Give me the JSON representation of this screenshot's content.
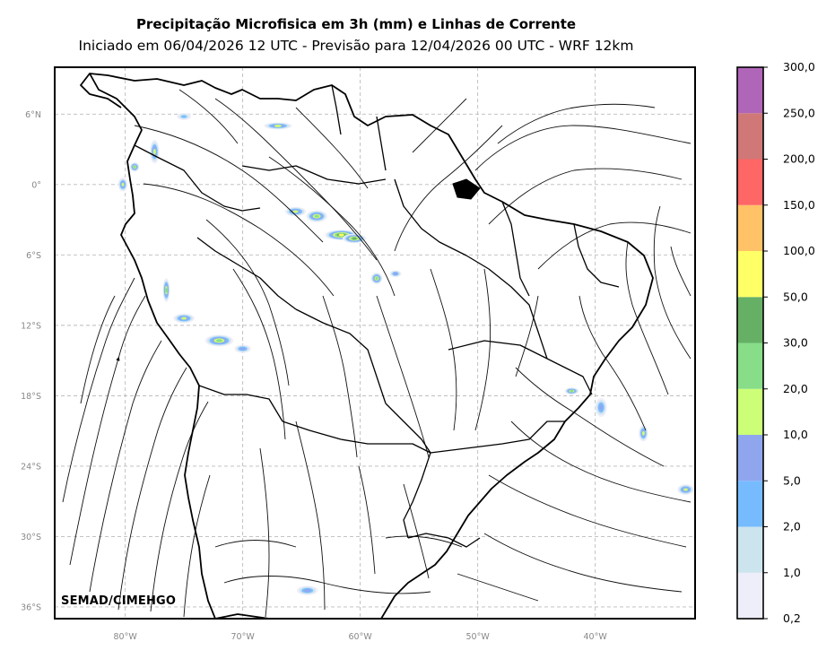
{
  "title": "Precipitação Microfisica em 3h (mm) e Linhas de Corrente",
  "subtitle": "Iniciado em 06/04/2026 12 UTC - Previsão para 12/04/2026 00 UTC - WRF 12km",
  "credit": "SEMAD/CIMEHGO",
  "map": {
    "lon_range": [
      -86,
      -31.5
    ],
    "lat_range": [
      -37,
      10
    ],
    "lon_ticks": [
      {
        "value": -80,
        "label": "80°W"
      },
      {
        "value": -70,
        "label": "70°W"
      },
      {
        "value": -60,
        "label": "60°W"
      },
      {
        "value": -50,
        "label": "50°W"
      },
      {
        "value": -40,
        "label": "40°W"
      }
    ],
    "lat_ticks": [
      {
        "value": 6,
        "label": "6°N"
      },
      {
        "value": 0,
        "label": "0°"
      },
      {
        "value": -6,
        "label": "6°S"
      },
      {
        "value": -12,
        "label": "12°S"
      },
      {
        "value": -18,
        "label": "18°S"
      },
      {
        "value": -24,
        "label": "24°S"
      },
      {
        "value": -30,
        "label": "30°S"
      },
      {
        "value": -36,
        "label": "36°S"
      }
    ],
    "gridlines": true
  },
  "colorbar": {
    "unit": "mm",
    "levels": [
      "0,2",
      "1,0",
      "2,0",
      "5,0",
      "10,0",
      "20,0",
      "30,0",
      "50,0",
      "100,0",
      "150,0",
      "200,0",
      "250,0",
      "300,0"
    ],
    "colors": [
      "#eeeefa",
      "#cce4ee",
      "#77bbff",
      "#8fa6ee",
      "#ccff77",
      "#88dd88",
      "#66b066",
      "#ffff66",
      "#ffc266",
      "#ff6666",
      "#d07878",
      "#b066b8"
    ]
  },
  "precip_cells": [
    {
      "lon": -65.5,
      "lat": -2.3,
      "rx": 0.9,
      "ry": 0.4,
      "level": 4
    },
    {
      "lon": -63.7,
      "lat": -2.7,
      "rx": 0.9,
      "ry": 0.5,
      "level": 5
    },
    {
      "lon": -61.6,
      "lat": -4.3,
      "rx": 1.4,
      "ry": 0.45,
      "level": 7
    },
    {
      "lon": -60.5,
      "lat": -4.6,
      "rx": 1.0,
      "ry": 0.4,
      "level": 6
    },
    {
      "lon": -58.6,
      "lat": -8.0,
      "rx": 0.5,
      "ry": 0.5,
      "level": 5
    },
    {
      "lon": -77.5,
      "lat": 2.8,
      "rx": 0.4,
      "ry": 1.0,
      "level": 4
    },
    {
      "lon": -80.2,
      "lat": 0.0,
      "rx": 0.4,
      "ry": 0.6,
      "level": 4
    },
    {
      "lon": -79.2,
      "lat": 1.5,
      "rx": 0.4,
      "ry": 0.4,
      "level": 5
    },
    {
      "lon": -76.5,
      "lat": -9.0,
      "rx": 0.3,
      "ry": 1.0,
      "level": 5
    },
    {
      "lon": -75.0,
      "lat": -11.4,
      "rx": 0.9,
      "ry": 0.4,
      "level": 4
    },
    {
      "lon": -72.0,
      "lat": -13.3,
      "rx": 1.2,
      "ry": 0.5,
      "level": 5
    },
    {
      "lon": -70.0,
      "lat": -14.0,
      "rx": 0.7,
      "ry": 0.35,
      "level": 3
    },
    {
      "lon": -67.0,
      "lat": 5.0,
      "rx": 1.2,
      "ry": 0.3,
      "level": 4
    },
    {
      "lon": -42.0,
      "lat": -17.6,
      "rx": 0.6,
      "ry": 0.3,
      "level": 5
    },
    {
      "lon": -39.5,
      "lat": -19.0,
      "rx": 0.5,
      "ry": 0.8,
      "level": 3
    },
    {
      "lon": -35.9,
      "lat": -21.2,
      "rx": 0.4,
      "ry": 0.7,
      "level": 4
    },
    {
      "lon": -32.3,
      "lat": -26.0,
      "rx": 0.7,
      "ry": 0.45,
      "level": 4
    },
    {
      "lon": -64.5,
      "lat": -34.6,
      "rx": 0.9,
      "ry": 0.4,
      "level": 3
    },
    {
      "lon": -57.0,
      "lat": -7.6,
      "rx": 0.5,
      "ry": 0.3,
      "level": 3
    },
    {
      "lon": -75.0,
      "lat": 5.8,
      "rx": 0.6,
      "ry": 0.3,
      "level": 2
    }
  ]
}
